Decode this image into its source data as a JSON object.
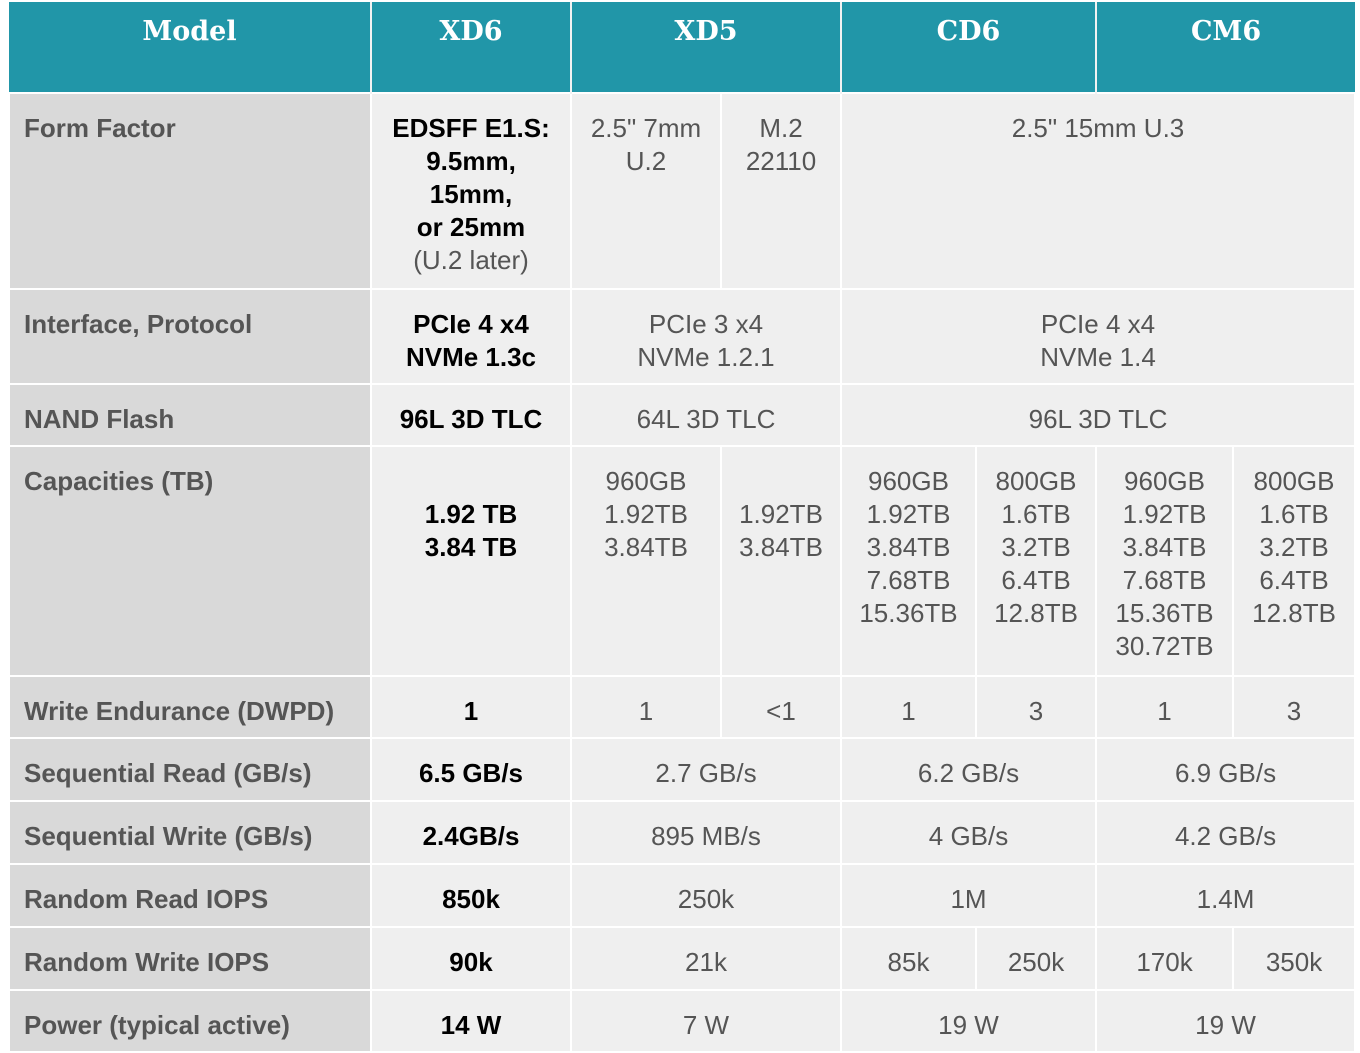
{
  "header": {
    "model": "Model",
    "xd6": "XD6",
    "xd5": "XD5",
    "cd6": "CD6",
    "cm6": "CM6"
  },
  "form_factor": {
    "label": "Form Factor",
    "xd6": [
      "EDSFF E1.S:",
      "9.5mm,",
      "15mm,",
      "or 25mm"
    ],
    "xd6_note": "(U.2 later)",
    "xd5_u2": [
      "2.5\" 7mm",
      "U.2"
    ],
    "xd5_m2": [
      "M.2",
      "22110"
    ],
    "cd6_cm6": "2.5\" 15mm U.3"
  },
  "interface": {
    "label": "Interface, Protocol",
    "xd6": [
      "PCIe 4 x4",
      "NVMe 1.3c"
    ],
    "xd5": [
      "PCIe 3 x4",
      "NVMe 1.2.1"
    ],
    "cd6_cm6": [
      "PCIe 4 x4",
      "NVMe 1.4"
    ]
  },
  "nand": {
    "label": "NAND Flash",
    "xd6": "96L 3D TLC",
    "xd5": "64L 3D TLC",
    "cd6_cm6": "96L 3D TLC"
  },
  "capacities": {
    "label": "Capacities (TB)",
    "xd6": [
      "1.92 TB",
      "3.84 TB"
    ],
    "xd5_u2": [
      "960GB",
      "1.92TB",
      "3.84TB"
    ],
    "xd5_m2": [
      "1.92TB",
      "3.84TB"
    ],
    "cd6_r": [
      "960GB",
      "1.92TB",
      "3.84TB",
      "7.68TB",
      "15.36TB"
    ],
    "cd6_v": [
      "800GB",
      "1.6TB",
      "3.2TB",
      "6.4TB",
      "12.8TB"
    ],
    "cm6_r": [
      "960GB",
      "1.92TB",
      "3.84TB",
      "7.68TB",
      "15.36TB",
      "30.72TB"
    ],
    "cm6_v": [
      "800GB",
      "1.6TB",
      "3.2TB",
      "6.4TB",
      "12.8TB"
    ]
  },
  "endurance": {
    "label": "Write Endurance (DWPD)",
    "xd6": "1",
    "xd5_u2": "1",
    "xd5_m2": "<1",
    "cd6_r": "1",
    "cd6_v": "3",
    "cm6_r": "1",
    "cm6_v": "3"
  },
  "seq_read": {
    "label": "Sequential Read (GB/s)",
    "xd6": "6.5 GB/s",
    "xd5": "2.7 GB/s",
    "cd6": "6.2 GB/s",
    "cm6": "6.9 GB/s"
  },
  "seq_write": {
    "label": "Sequential Write (GB/s)",
    "xd6": "2.4GB/s",
    "xd5": "895 MB/s",
    "cd6": "4 GB/s",
    "cm6": "4.2 GB/s"
  },
  "rand_read": {
    "label": "Random Read IOPS",
    "xd6": "850k",
    "xd5": "250k",
    "cd6": "1M",
    "cm6": "1.4M"
  },
  "rand_write": {
    "label": "Random Write IOPS",
    "xd6": "90k",
    "xd5": "21k",
    "cd6_r": "85k",
    "cd6_v": "250k",
    "cm6_r": "170k",
    "cm6_v": "350k"
  },
  "power": {
    "label": "Power (typical active)",
    "xd6": "14 W",
    "xd5": "7 W",
    "cd6": "19 W",
    "cm6": "19 W"
  }
}
